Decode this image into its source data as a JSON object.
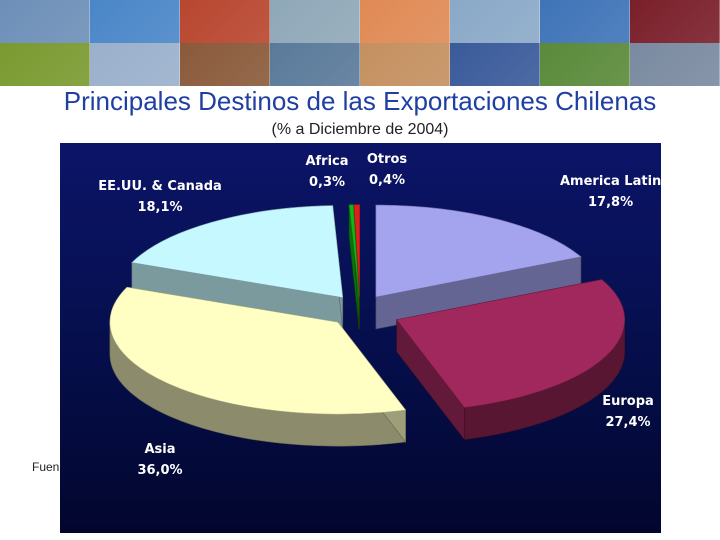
{
  "banner": {
    "tiles": [
      {
        "icon": "landscape-photo-icon",
        "color": "#6d8fb8"
      },
      {
        "icon": "bird-photo-icon",
        "color": "#4a86c8"
      },
      {
        "icon": "apples-photo-icon",
        "color": "#b8462f"
      },
      {
        "icon": "office-worker-photo-icon",
        "color": "#8fa8b8"
      },
      {
        "icon": "salmon-photo-icon",
        "color": "#e08a55"
      },
      {
        "icon": "industrial-photo-icon",
        "color": "#8aa9c8"
      },
      {
        "icon": "volcano-photo-icon",
        "color": "#3f74b8"
      },
      {
        "icon": "wine-photo-icon",
        "color": "#7a1f2a"
      }
    ],
    "bottom_tiles": [
      {
        "icon": "kiwi-photo-icon",
        "color": "#7a9a30"
      },
      {
        "icon": "document-photo-icon",
        "color": "#9ab0cc"
      },
      {
        "icon": "factory-photo-icon",
        "color": "#8a5a3a"
      },
      {
        "icon": "mountains-photo-icon",
        "color": "#5a7a9a"
      },
      {
        "icon": "seafood-photo-icon",
        "color": "#c49060"
      },
      {
        "icon": "solar-panel-photo-icon",
        "color": "#3a5a9a"
      },
      {
        "icon": "asparagus-photo-icon",
        "color": "#5a8a3a"
      },
      {
        "icon": "city-photo-icon",
        "color": "#7a8aa0"
      }
    ]
  },
  "header": {
    "title": "Principales Destinos de las Exportaciones Chilenas",
    "subtitle": "(% a Diciembre de 2004)"
  },
  "footer": {
    "source": "Fuen"
  },
  "chart_data": {
    "type": "pie",
    "style": "3d-exploded",
    "title": "Principales Destinos de las Exportaciones Chilenas",
    "subtitle": "(% a Diciembre de 2004)",
    "slices": [
      {
        "label": "America Latina",
        "value_label": "17,8%",
        "value": 17.8,
        "color": "#a3a3ee"
      },
      {
        "label": "Europa",
        "value_label": "27,4%",
        "value": 27.4,
        "color": "#a0285c"
      },
      {
        "label": "Asia",
        "value_label": "36,0%",
        "value": 36.0,
        "color": "#ffffc4"
      },
      {
        "label": "EE.UU. & Canada",
        "value_label": "18,1%",
        "value": 18.1,
        "color": "#c6f8ff"
      },
      {
        "label": "Africa",
        "value_label": "0,3%",
        "value": 0.3,
        "color": "#14b414"
      },
      {
        "label": "Otros",
        "value_label": "0,4%",
        "value": 0.4,
        "color": "#e02020"
      }
    ]
  }
}
